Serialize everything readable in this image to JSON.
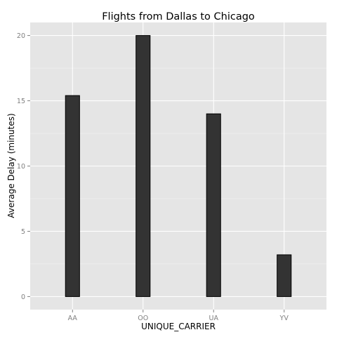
{
  "chart_data": {
    "type": "bar",
    "title": "Flights from Dallas to Chicago",
    "xlabel": "UNIQUE_CARRIER",
    "ylabel": "Average Delay (minutes)",
    "categories": [
      "AA",
      "OO",
      "UA",
      "YV"
    ],
    "values": [
      15.4,
      20.0,
      14.0,
      3.2
    ],
    "ylim": [
      -1.0,
      21.0
    ],
    "yticks": [
      0,
      5,
      10,
      15,
      20
    ],
    "ytick_labels": [
      "0",
      "5",
      "10",
      "15",
      "20"
    ],
    "grid": true,
    "legend": "none",
    "colors": {
      "panel_background": "#e5e5e5",
      "grid_major": "#ffffff",
      "grid_minor": "#f2f2f2",
      "bar_fill": "#333333",
      "bar_outline": "#000000"
    }
  }
}
